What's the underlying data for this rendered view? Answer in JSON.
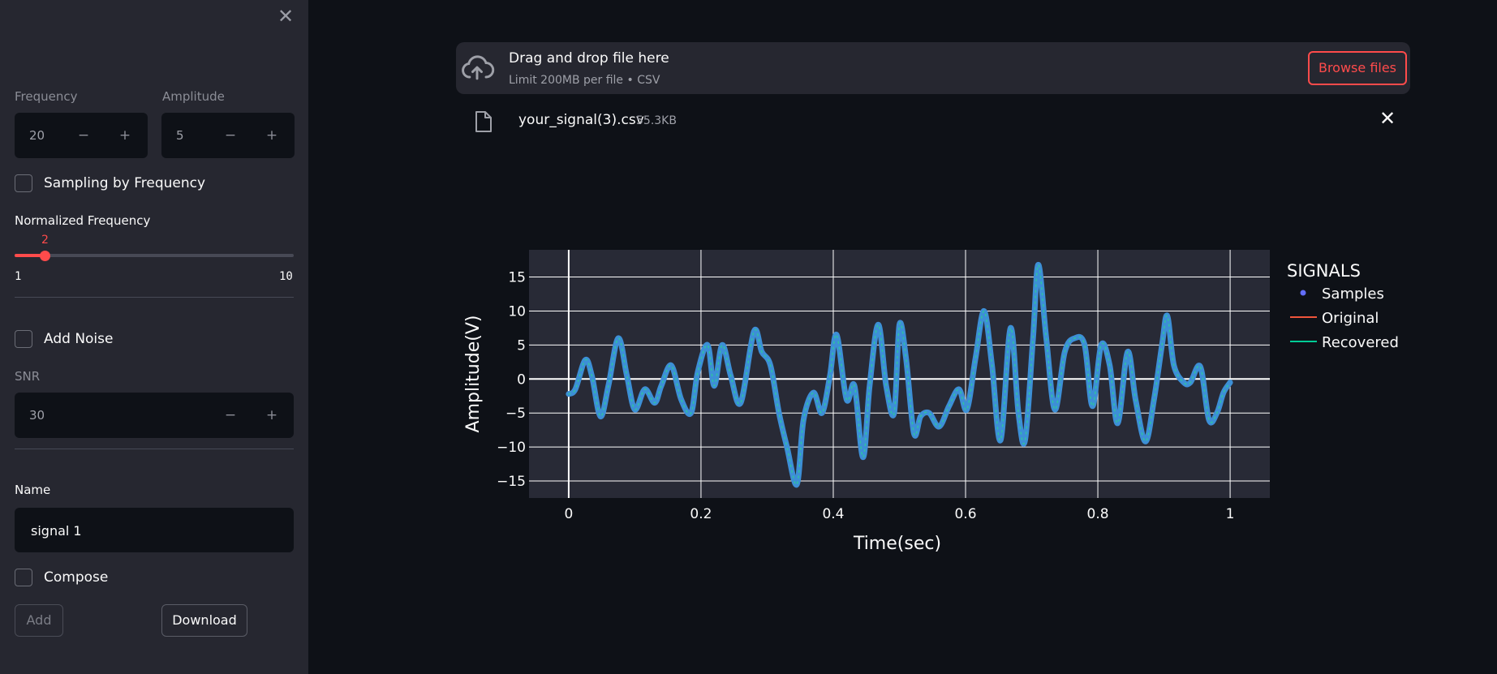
{
  "sidebar": {
    "frequency": {
      "label": "Frequency",
      "value": "20",
      "minus": "−",
      "plus": "+"
    },
    "amplitude": {
      "label": "Amplitude",
      "value": "5",
      "minus": "−",
      "plus": "+"
    },
    "sampling_by_frequency": {
      "label": "Sampling by Frequency",
      "checked": false
    },
    "normalized_frequency": {
      "label": "Normalized Frequency",
      "value": "2",
      "min": "1",
      "max": "10"
    },
    "add_noise": {
      "label": "Add Noise",
      "checked": false
    },
    "snr": {
      "label": "SNR",
      "value": "30",
      "minus": "−",
      "plus": "+"
    },
    "name": {
      "label": "Name",
      "value": "signal 1"
    },
    "compose": {
      "label": "Compose",
      "checked": false
    },
    "add_button": "Add",
    "download_button": "Download"
  },
  "uploader": {
    "title": "Drag and drop file here",
    "subtitle": "Limit 200MB per file • CSV",
    "browse_button": "Browse files",
    "file_name": "your_signal(3).csv",
    "file_size": "55.3KB"
  },
  "chart_data": {
    "type": "line",
    "xlabel": "Time(sec)",
    "ylabel": "Amplitude(V)",
    "xlim": [
      -0.06,
      1.06
    ],
    "ylim": [
      -17.5,
      19
    ],
    "xticks": [
      "0",
      "0.2",
      "0.4",
      "0.6",
      "0.8",
      "1"
    ],
    "xtick_values": [
      0,
      0.2,
      0.4,
      0.6,
      0.8,
      1
    ],
    "yticks": [
      "−15",
      "−10",
      "−5",
      "0",
      "5",
      "10",
      "15"
    ],
    "ytick_values": [
      -15,
      -10,
      -5,
      0,
      5,
      10,
      15
    ],
    "grid": true,
    "legend": {
      "title": "SIGNALS",
      "position": "right"
    },
    "series": [
      {
        "name": "Samples",
        "kind": "markers",
        "color": "#636efa"
      },
      {
        "name": "Original",
        "kind": "line",
        "color": "#ef553b"
      },
      {
        "name": "Recovered",
        "kind": "line",
        "color": "#00cc96"
      }
    ],
    "signal": {
      "x": [
        0,
        0.01,
        0.025,
        0.035,
        0.048,
        0.06,
        0.075,
        0.088,
        0.1,
        0.115,
        0.13,
        0.14,
        0.155,
        0.17,
        0.185,
        0.195,
        0.21,
        0.22,
        0.232,
        0.245,
        0.26,
        0.28,
        0.292,
        0.305,
        0.318,
        0.33,
        0.345,
        0.355,
        0.37,
        0.383,
        0.395,
        0.405,
        0.42,
        0.432,
        0.445,
        0.455,
        0.468,
        0.48,
        0.492,
        0.5,
        0.51,
        0.522,
        0.532,
        0.545,
        0.56,
        0.575,
        0.59,
        0.602,
        0.615,
        0.628,
        0.64,
        0.653,
        0.668,
        0.68,
        0.69,
        0.702,
        0.71,
        0.722,
        0.735,
        0.75,
        0.765,
        0.78,
        0.792,
        0.805,
        0.818,
        0.83,
        0.845,
        0.857,
        0.872,
        0.885,
        0.897,
        0.905,
        0.915,
        0.93,
        0.94,
        0.955,
        0.968,
        0.98,
        0.99,
        1.0
      ],
      "y": [
        -2.2,
        -1.5,
        2.8,
        0.5,
        -5.5,
        -1.0,
        6.0,
        0.5,
        -4.5,
        -1.5,
        -3.5,
        -1.0,
        2.0,
        -3.0,
        -5.0,
        1.0,
        5.0,
        -1.0,
        5.0,
        0.5,
        -3.5,
        7.0,
        4.0,
        2.0,
        -5.0,
        -10.0,
        -15.5,
        -6.0,
        -2.0,
        -5.0,
        0.5,
        6.5,
        -3.0,
        -1.0,
        -11.5,
        -1.0,
        8.0,
        -1.0,
        -5.0,
        8.0,
        3.0,
        -8.0,
        -5.5,
        -5.0,
        -7.0,
        -4.0,
        -1.5,
        -4.5,
        3.0,
        10.0,
        2.0,
        -9.0,
        7.5,
        -5.0,
        -9.0,
        6.0,
        16.8,
        6.0,
        -4.5,
        4.0,
        6.0,
        5.0,
        -4.0,
        5.0,
        2.0,
        -6.5,
        4.0,
        -3.0,
        -9.2,
        -3.0,
        5.0,
        9.3,
        2.0,
        -0.5,
        -0.5,
        1.8,
        -6.0,
        -5.0,
        -2.0,
        -0.5
      ]
    }
  }
}
